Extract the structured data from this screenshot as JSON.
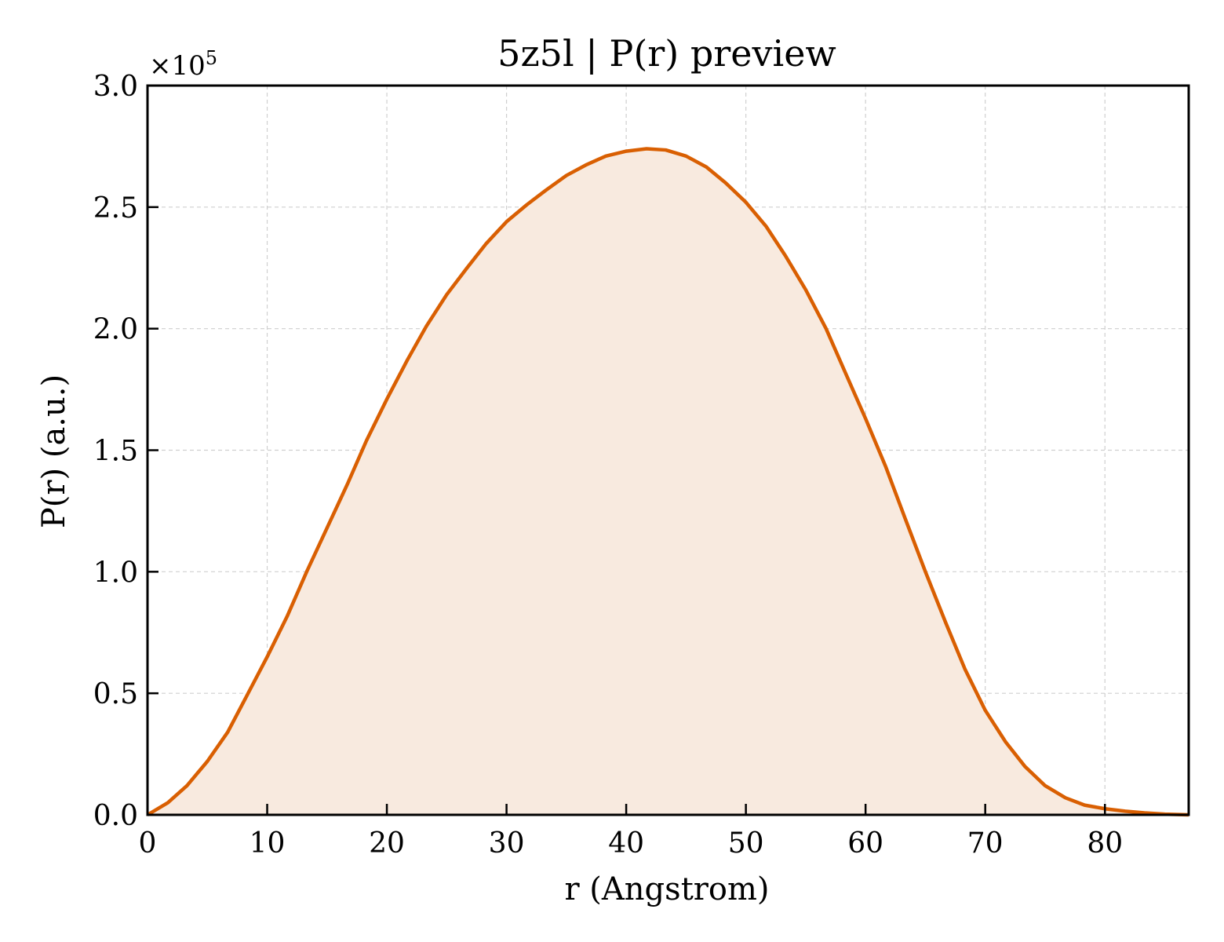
{
  "chart_data": {
    "type": "area",
    "title": "5z5l | P(r) preview",
    "xlabel": "r (Angstrom)",
    "ylabel": "P(r) (a.u.)",
    "y_multiplier": {
      "base": "×10",
      "exponent": "5"
    },
    "xlim": [
      0,
      87
    ],
    "ylim": [
      0,
      3.0
    ],
    "y_scale_factor": 100000,
    "xticks": [
      0,
      10,
      20,
      30,
      40,
      50,
      60,
      70,
      80
    ],
    "xtick_labels": [
      "0",
      "10",
      "20",
      "30",
      "40",
      "50",
      "60",
      "70",
      "80"
    ],
    "yticks": [
      0.0,
      0.5,
      1.0,
      1.5,
      2.0,
      2.5,
      3.0
    ],
    "ytick_labels": [
      "0.0",
      "0.5",
      "1.0",
      "1.5",
      "2.0",
      "2.5",
      "3.0"
    ],
    "grid": true,
    "legend": "none",
    "colors": {
      "line": "#d95f02",
      "fill": "#f8eadf"
    },
    "series": [
      {
        "x": [
          0,
          1.7,
          3.3,
          5.0,
          6.7,
          8.3,
          10.0,
          11.7,
          13.3,
          15.0,
          16.7,
          18.3,
          20.0,
          21.7,
          23.3,
          25.0,
          26.7,
          28.3,
          30.0,
          31.7,
          33.3,
          35.0,
          36.7,
          38.3,
          40.0,
          41.7,
          43.3,
          45.0,
          46.7,
          48.3,
          50.0,
          51.7,
          53.3,
          55.0,
          56.7,
          58.3,
          60.0,
          61.7,
          63.3,
          65.0,
          66.7,
          68.3,
          70.0,
          71.7,
          73.3,
          75.0,
          76.7,
          78.3,
          80.0,
          81.7,
          83.3,
          85.0,
          87.0
        ],
        "values": [
          0.0,
          0.05,
          0.12,
          0.22,
          0.34,
          0.49,
          0.65,
          0.82,
          1.0,
          1.18,
          1.36,
          1.54,
          1.71,
          1.87,
          2.01,
          2.14,
          2.25,
          2.35,
          2.44,
          2.51,
          2.57,
          2.63,
          2.675,
          2.71,
          2.73,
          2.74,
          2.735,
          2.71,
          2.665,
          2.6,
          2.52,
          2.42,
          2.3,
          2.16,
          2.0,
          1.82,
          1.63,
          1.43,
          1.22,
          1.0,
          0.79,
          0.6,
          0.43,
          0.3,
          0.2,
          0.12,
          0.07,
          0.04,
          0.025,
          0.015,
          0.008,
          0.003,
          0.0
        ]
      }
    ]
  }
}
